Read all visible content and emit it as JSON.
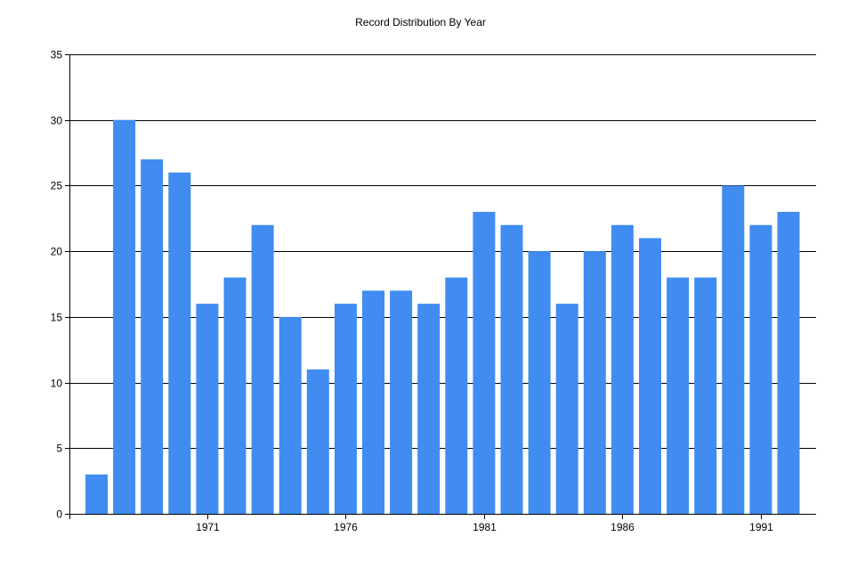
{
  "chart_data": {
    "type": "bar",
    "title": "Record Distribution By Year",
    "xlabel": "",
    "ylabel": "",
    "x_years": [
      1967,
      1968,
      1969,
      1970,
      1971,
      1972,
      1973,
      1974,
      1975,
      1976,
      1977,
      1978,
      1979,
      1980,
      1981,
      1982,
      1983,
      1984,
      1985,
      1986,
      1987,
      1988,
      1989,
      1990,
      1991,
      1992
    ],
    "values": [
      3,
      30,
      27,
      26,
      16,
      18,
      22,
      15,
      11,
      16,
      17,
      17,
      16,
      18,
      23,
      22,
      20,
      16,
      20,
      22,
      21,
      18,
      18,
      25,
      22,
      23
    ],
    "x_tick_labels": [
      "1971",
      "1976",
      "1981",
      "1986",
      "1991"
    ],
    "y_ticks": [
      "0",
      "5",
      "10",
      "15",
      "20",
      "25",
      "30",
      "35"
    ],
    "ylim": [
      0,
      35
    ],
    "grid": "horizontal",
    "bar_color": "#418CF0"
  }
}
